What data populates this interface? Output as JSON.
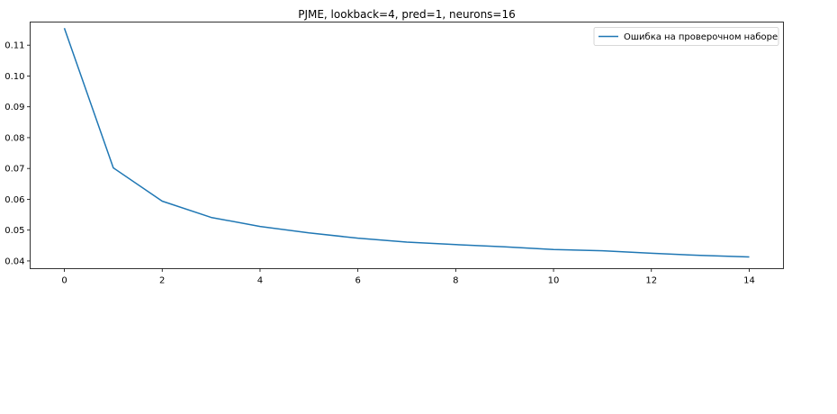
{
  "chart_data": {
    "type": "line",
    "title": "PJME, lookback=4, pred=1, neurons=16",
    "xlabel": "",
    "ylabel": "",
    "xlim": [
      -0.7,
      14.7
    ],
    "ylim": [
      0.0375,
      0.1175
    ],
    "xticks": [
      0,
      2,
      4,
      6,
      8,
      10,
      12,
      14
    ],
    "xtick_labels": [
      "0",
      "2",
      "4",
      "6",
      "8",
      "10",
      "12",
      "14"
    ],
    "yticks": [
      0.04,
      0.05,
      0.06,
      0.07,
      0.08,
      0.09,
      0.1,
      0.11
    ],
    "ytick_labels": [
      "0.04",
      "0.05",
      "0.06",
      "0.07",
      "0.08",
      "0.09",
      "0.10",
      "0.11"
    ],
    "grid": false,
    "legend_position": "top-right",
    "series": [
      {
        "name": "Ошибка на проверочном наборе",
        "color": "#1f77b4",
        "x": [
          0,
          1,
          2,
          3,
          4,
          5,
          6,
          7,
          8,
          9,
          10,
          11,
          12,
          13,
          14
        ],
        "y": [
          0.1155,
          0.0702,
          0.0594,
          0.0541,
          0.0512,
          0.0491,
          0.0474,
          0.0461,
          0.0453,
          0.0446,
          0.0437,
          0.0433,
          0.0425,
          0.0418,
          0.0413
        ]
      }
    ]
  }
}
